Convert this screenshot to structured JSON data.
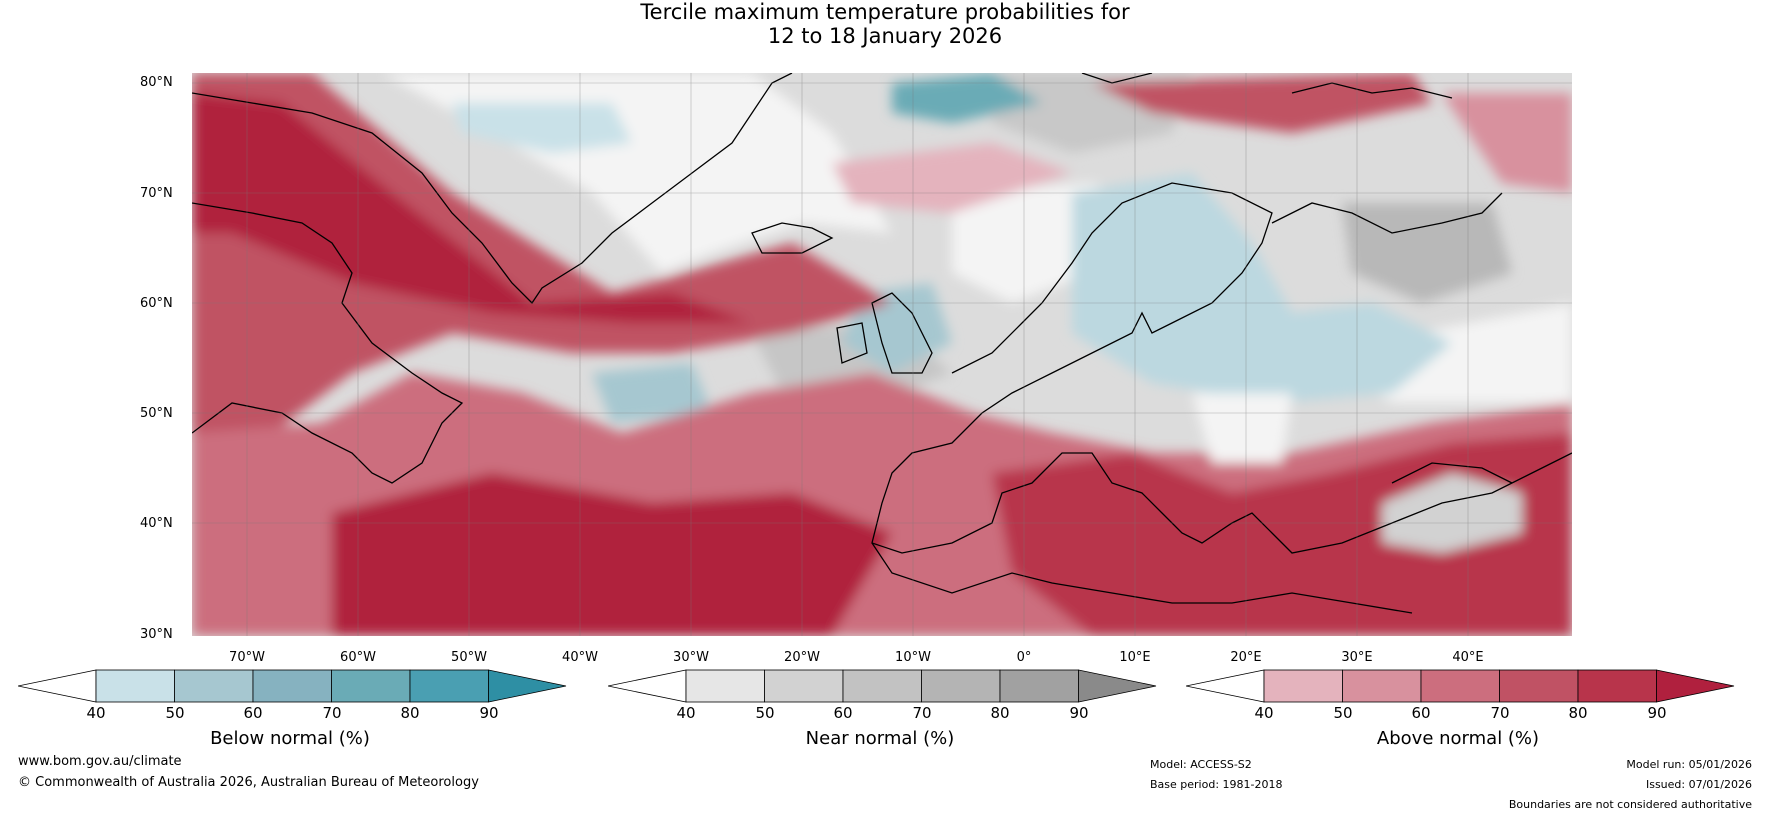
{
  "title_line1": "Tercile maximum temperature probabilities for",
  "title_line2": "12 to 18 January 2026",
  "latitude_labels": [
    "80°N",
    "70°N",
    "60°N",
    "50°N",
    "40°N",
    "30°N"
  ],
  "longitude_labels": [
    "70°W",
    "60°W",
    "50°W",
    "40°W",
    "30°W",
    "20°W",
    "10°W",
    "0°",
    "10°E",
    "20°E",
    "30°E",
    "40°E"
  ],
  "colorbars": [
    {
      "title": "Below normal (%)",
      "ticks": [
        "40",
        "50",
        "60",
        "70",
        "80",
        "90"
      ],
      "colors": [
        "#ffffff",
        "#c9e1e8",
        "#a6c7d0",
        "#86b2c0",
        "#6aabb6",
        "#4a9fb2",
        "#2e8fa4"
      ]
    },
    {
      "title": "Near normal (%)",
      "ticks": [
        "40",
        "50",
        "60",
        "70",
        "80",
        "90"
      ],
      "colors": [
        "#ffffff",
        "#e6e6e6",
        "#d2d2d2",
        "#c2c2c2",
        "#b4b4b4",
        "#a1a1a1",
        "#8a8a8a"
      ]
    },
    {
      "title": "Above normal (%)",
      "ticks": [
        "40",
        "50",
        "60",
        "70",
        "80",
        "90"
      ],
      "colors": [
        "#ffffff",
        "#e4b3bd",
        "#d8919e",
        "#cc6e7e",
        "#c05264",
        "#b8344b",
        "#b0203e"
      ]
    }
  ],
  "footer": {
    "website": "www.bom.gov.au/climate",
    "copyright": "© Commonwealth of Australia 2026, Australian Bureau of Meteorology",
    "model": "Model: ACCESS-S2",
    "base_period": "Base period: 1981-2018",
    "model_run": "Model run: 05/01/2026",
    "issued": "Issued: 07/01/2026",
    "disclaimer": "Boundaries are not considered authoritative"
  }
}
